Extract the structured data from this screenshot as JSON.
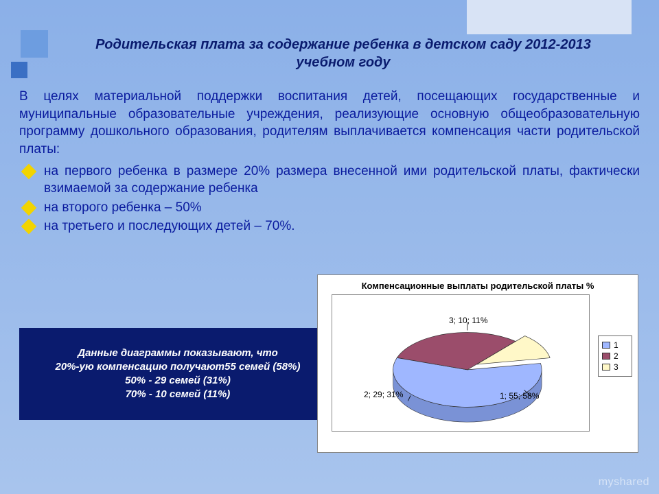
{
  "title": "Родительская плата за содержание ребенка в детском саду 2012-2013 учебном году",
  "intro": "В целях материальной поддержки воспитания детей, посещающих государственные и муниципальные образовательные учреждения, реализующие основную общеобразовательную программу дошкольного образования, родителям выплачивается компенсация части родительской платы:",
  "bullets": {
    "b1": "на первого ребенка в размере 20% размера внесенной ими родительской платы, фактически взимаемой за содержание ребенка",
    "b2": "на второго ребенка – 50%",
    "b3": "на третьего и последующих детей – 70%."
  },
  "caption": {
    "l1": "Данные диаграммы показывают, что",
    "l2": "20%-ую компенсацию получают55 семей (58%)",
    "l3": "50% - 29 семей (31%)",
    "l4": "70% - 10 семей (11%)"
  },
  "chart": {
    "type": "pie-3d",
    "title": "Компенсационные выплаты родительской платы %",
    "background_color": "#ffffff",
    "border_color": "#888888",
    "slices": [
      {
        "id": "1",
        "families": 55,
        "pct": 58,
        "label": "1; 55; 58%",
        "color": "#9fb7ff",
        "side": "#7a92d6"
      },
      {
        "id": "2",
        "families": 29,
        "pct": 31,
        "label": "2; 29; 31%",
        "color": "#9b4d6b",
        "side": "#6e3148"
      },
      {
        "id": "3",
        "families": 10,
        "pct": 11,
        "label": "3; 10; 11%",
        "color": "#fff8c8",
        "side": "#d8d090"
      }
    ],
    "legend": {
      "items": [
        "1",
        "2",
        "3"
      ]
    },
    "label_fontsize": 12
  },
  "watermark": "myshared"
}
